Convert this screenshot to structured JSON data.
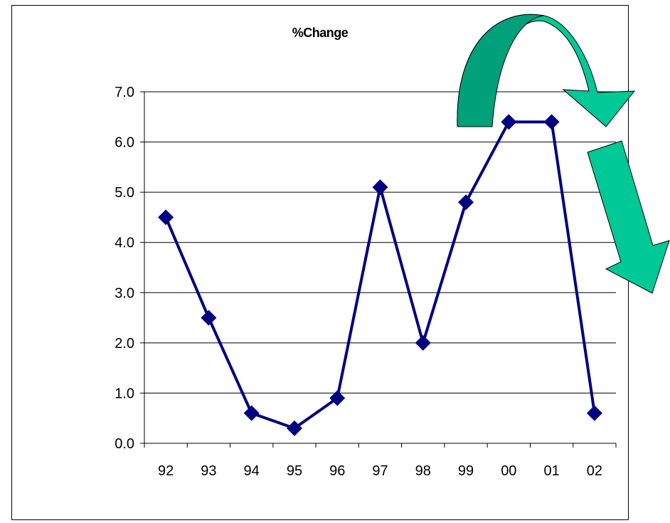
{
  "chart_data": {
    "type": "line",
    "title": "%Change",
    "categories": [
      "92",
      "93",
      "94",
      "95",
      "96",
      "97",
      "98",
      "99",
      "00",
      "01",
      "02"
    ],
    "series": [
      {
        "values": [
          4.5,
          2.5,
          0.6,
          0.3,
          0.9,
          5.1,
          2.0,
          4.8,
          6.4,
          6.4,
          0.6
        ]
      }
    ],
    "y_ticks": [
      "0.0",
      "1.0",
      "2.0",
      "3.0",
      "4.0",
      "5.0",
      "6.0",
      "7.0"
    ],
    "ylim": [
      0,
      7
    ],
    "grid": true,
    "legend": "none",
    "colors": {
      "series": "#000080",
      "arrow_dark": "#00A07A",
      "arrow_light": "#00C896",
      "grid": "#000000"
    }
  }
}
